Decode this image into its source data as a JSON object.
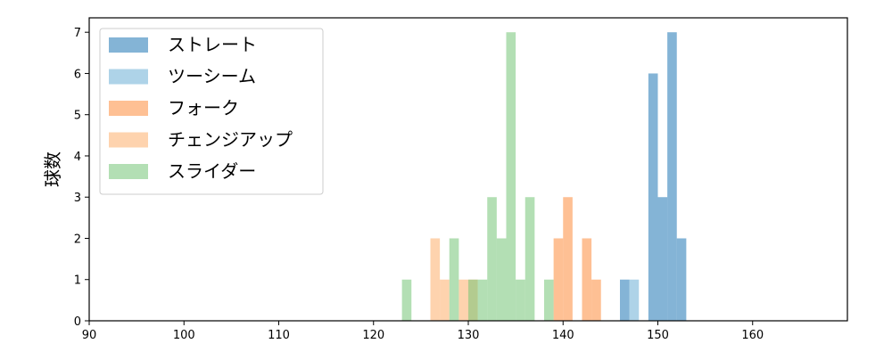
{
  "chart_data": {
    "type": "histogram",
    "xlabel": "",
    "ylabel": "球数",
    "xlim": [
      90,
      170
    ],
    "ylim": [
      0,
      7.35
    ],
    "xticks": [
      "90",
      "100",
      "110",
      "120",
      "130",
      "140",
      "150",
      "160"
    ],
    "yticks": [
      "0",
      "1",
      "2",
      "3",
      "4",
      "5",
      "6",
      "7"
    ],
    "grid": false,
    "legend_position": "top-left",
    "bin_width": 1,
    "series": [
      {
        "name": "ストレート",
        "color": "#1f77b4",
        "bins": [
          [
            146,
            1
          ],
          [
            149,
            6
          ],
          [
            150,
            3
          ],
          [
            151,
            7
          ],
          [
            152,
            2
          ]
        ]
      },
      {
        "name": "ツーシーム",
        "color": "#6baed6",
        "bins": [
          [
            147,
            1
          ]
        ]
      },
      {
        "name": "フォーク",
        "color": "#fd8d3c",
        "bins": [
          [
            139,
            2
          ],
          [
            140,
            3
          ],
          [
            142,
            2
          ],
          [
            143,
            1
          ]
        ]
      },
      {
        "name": "チェンジアップ",
        "color": "#fdae6b",
        "bins": [
          [
            126,
            2
          ],
          [
            127,
            1
          ],
          [
            129,
            1
          ],
          [
            130,
            1
          ]
        ]
      },
      {
        "name": "スライダー",
        "color": "#74c476",
        "bins": [
          [
            123,
            1
          ],
          [
            128,
            2
          ],
          [
            130,
            1
          ],
          [
            131,
            1
          ],
          [
            132,
            3
          ],
          [
            133,
            2
          ],
          [
            134,
            7
          ],
          [
            135,
            1
          ],
          [
            136,
            3
          ],
          [
            138,
            1
          ]
        ]
      }
    ]
  }
}
